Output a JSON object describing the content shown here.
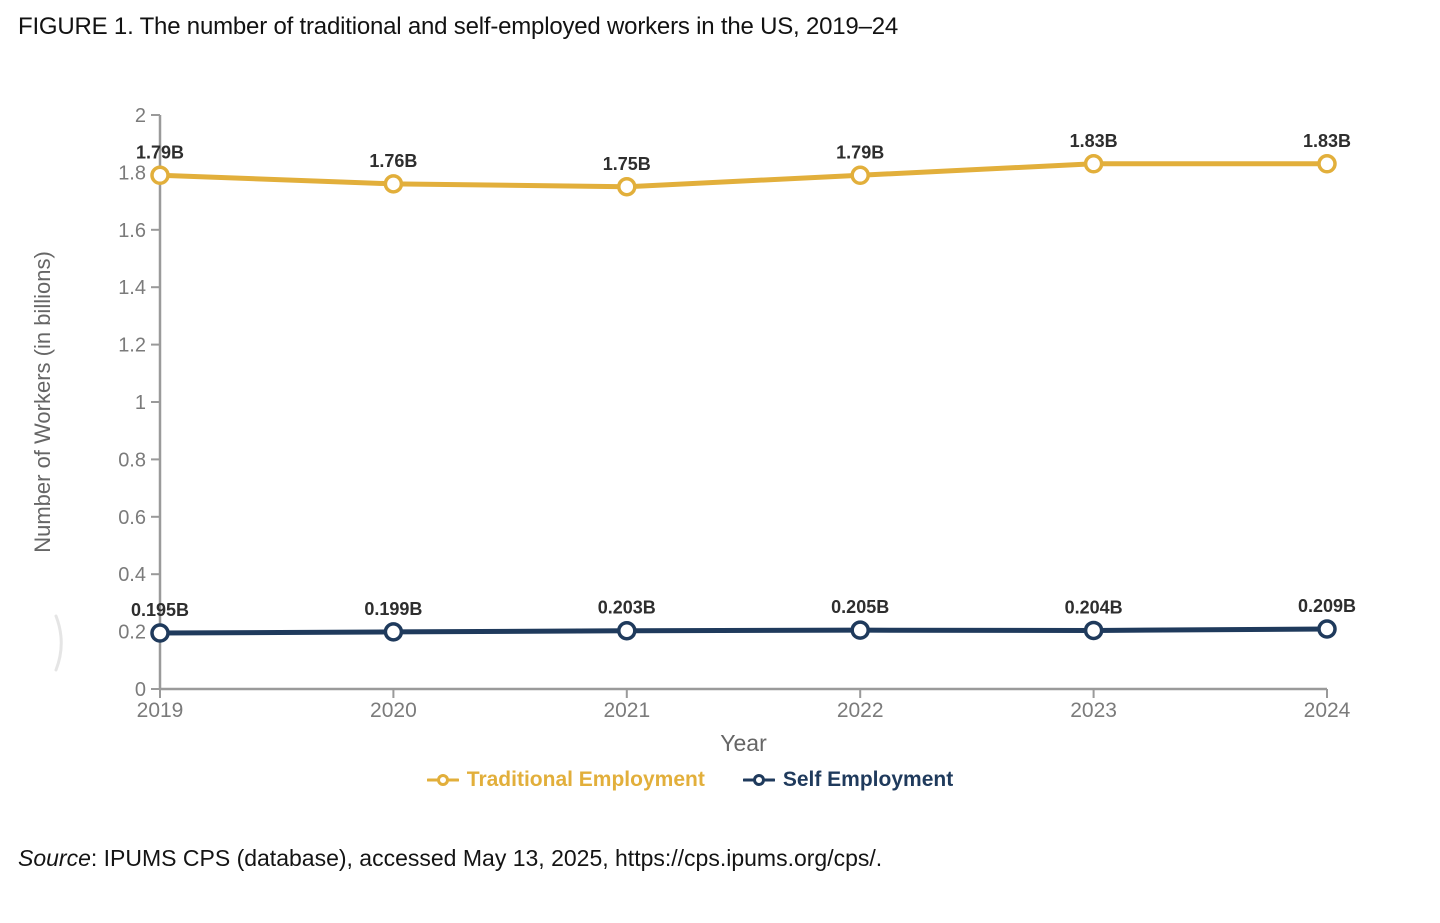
{
  "title": "FIGURE 1. The number of traditional and self-employed workers in the US, 2019–24",
  "source": {
    "prefix_italic": "Source",
    "text": ": IPUMS CPS (database), accessed May 13, 2025, https://cps.ipums.org/cps/."
  },
  "legend": {
    "items": [
      {
        "label": "Traditional Employment",
        "color": "#E2AF3B"
      },
      {
        "label": "Self Employment",
        "color": "#1F3A5C"
      }
    ]
  },
  "chart_data": {
    "type": "line",
    "title": "FIGURE 1. The number of traditional and self-employed workers in the US, 2019–24",
    "xlabel": "Year",
    "ylabel": "Number of Workers (in billions)",
    "x": [
      "2019",
      "2020",
      "2021",
      "2022",
      "2023",
      "2024"
    ],
    "series": [
      {
        "name": "Traditional Employment",
        "color": "#E2AF3B",
        "values": [
          1.79,
          1.76,
          1.75,
          1.79,
          1.83,
          1.83
        ],
        "point_labels": [
          "1.79B",
          "1.76B",
          "1.75B",
          "1.79B",
          "1.83B",
          "1.83B"
        ]
      },
      {
        "name": "Self Employment",
        "color": "#1F3A5C",
        "values": [
          0.195,
          0.199,
          0.203,
          0.205,
          0.204,
          0.209
        ],
        "point_labels": [
          "0.195B",
          "0.199B",
          "0.203B",
          "0.205B",
          "0.204B",
          "0.209B"
        ]
      }
    ],
    "ylim": [
      0,
      2
    ],
    "yticks": [
      0,
      0.2,
      0.4,
      0.6,
      0.8,
      1,
      1.2,
      1.4,
      1.6,
      1.8,
      2
    ],
    "ytick_labels": [
      "0",
      "0.2",
      "0.4",
      "0.6",
      "0.8",
      "1",
      "1.2",
      "1.4",
      "1.6",
      "1.8",
      "2"
    ],
    "grid": false,
    "legend_position": "bottom",
    "marker": "open-circle"
  },
  "style": {
    "background": "#ffffff",
    "axis_color": "#9a9a9a",
    "tick_label_color": "#7b7b7b",
    "axis_title_color": "#666666",
    "data_label_color": "#2e2e2e"
  }
}
